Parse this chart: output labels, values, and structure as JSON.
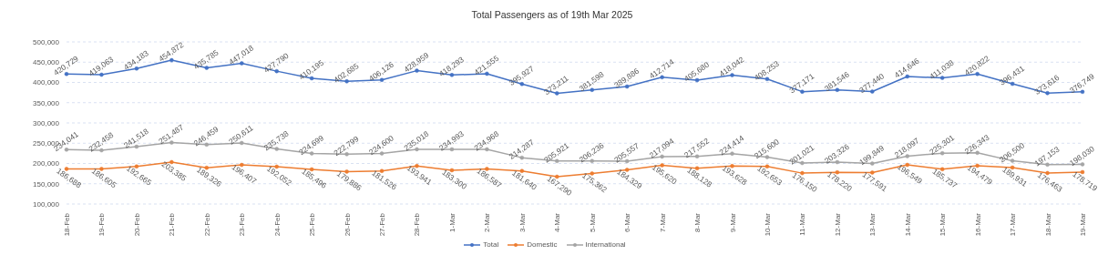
{
  "chart_data": {
    "type": "line",
    "title": "Total Passengers as of 19th Mar 2025",
    "categories": [
      "18-Feb",
      "19-Feb",
      "20-Feb",
      "21-Feb",
      "22-Feb",
      "23-Feb",
      "24-Feb",
      "25-Feb",
      "26-Feb",
      "27-Feb",
      "28-Feb",
      "1-Mar",
      "2-Mar",
      "3-Mar",
      "4-Mar",
      "5-Mar",
      "6-Mar",
      "7-Mar",
      "8-Mar",
      "9-Mar",
      "10-Mar",
      "11-Mar",
      "12-Mar",
      "13-Mar",
      "14-Mar",
      "15-Mar",
      "16-Mar",
      "17-Mar",
      "18-Mar",
      "19-Mar"
    ],
    "series": [
      {
        "name": "Total",
        "color": "#4472c4",
        "values": [
          420729,
          419063,
          434183,
          454872,
          435785,
          447018,
          427790,
          410195,
          402685,
          406126,
          428959,
          418293,
          421555,
          395927,
          373211,
          381598,
          389886,
          412714,
          405680,
          418042,
          408253,
          377171,
          381546,
          377440,
          414646,
          411038,
          420822,
          396431,
          373616,
          376749
        ],
        "value_labels": [
          "420,729",
          "419,063",
          "434,183",
          "454,872",
          "435,785",
          "447,018",
          "427,790",
          "410,195",
          "402,685",
          "406,126",
          "428,959",
          "418,293",
          "421,555",
          "395,927",
          "373,211",
          "381,598",
          "389,886",
          "412,714",
          "405,680",
          "418,042",
          "408,253",
          "377,171",
          "381,546",
          "377,440",
          "414,646",
          "411,038",
          "420,822",
          "396,431",
          "373,616",
          "376,749"
        ]
      },
      {
        "name": "Domestic",
        "color": "#ed7d31",
        "values": [
          186688,
          186605,
          192665,
          203385,
          189326,
          196407,
          192052,
          185496,
          179886,
          181526,
          193941,
          183300,
          186587,
          181640,
          167290,
          175362,
          184329,
          195620,
          188128,
          193628,
          192653,
          176150,
          178220,
          177591,
          196549,
          185737,
          194479,
          189931,
          176463,
          178719
        ],
        "value_labels": [
          "186,688",
          "186,605",
          "192,665",
          "203,385",
          "189,326",
          "196,407",
          "192,052",
          "185,496",
          "179,886",
          "181,526",
          "193,941",
          "183,300",
          "186,587",
          "181,640",
          "167,290",
          "175,362",
          "184,329",
          "195,620",
          "188,128",
          "193,628",
          "192,653",
          "176,150",
          "178,220",
          "177,591",
          "196,549",
          "185,737",
          "194,479",
          "189,931",
          "176,463",
          "178,719"
        ]
      },
      {
        "name": "International",
        "color": "#a5a5a5",
        "values": [
          234041,
          232458,
          241518,
          251487,
          246459,
          250611,
          235738,
          224699,
          222799,
          224600,
          235018,
          234993,
          234968,
          214287,
          205921,
          206236,
          205557,
          217094,
          217552,
          224414,
          215600,
          201021,
          203326,
          199849,
          218097,
          225301,
          226343,
          206500,
          197153,
          198030
        ],
        "value_labels": [
          "234,041",
          "232,458",
          "241,518",
          "251,487",
          "246,459",
          "250,611",
          "235,738",
          "224,699",
          "222,799",
          "224,600",
          "235,018",
          "234,993",
          "234,968",
          "214,287",
          "205,921",
          "206,236",
          "205,557",
          "217,094",
          "217,552",
          "224,414",
          "215,600",
          "201,021",
          "203,326",
          "199,849",
          "218,097",
          "225,301",
          "226,343",
          "206,500",
          "197,153",
          "198,030"
        ]
      }
    ],
    "ylim": [
      100000,
      500000
    ],
    "yticks": [
      {
        "value": 100000,
        "label": "100,000"
      },
      {
        "value": 150000,
        "label": "150,000"
      },
      {
        "value": 200000,
        "label": "200,000"
      },
      {
        "value": 250000,
        "label": "250,000"
      },
      {
        "value": 300000,
        "label": "300,000"
      },
      {
        "value": 350000,
        "label": "350,000"
      },
      {
        "value": 400000,
        "label": "400,000"
      },
      {
        "value": 450000,
        "label": "450,000"
      },
      {
        "value": 500000,
        "label": "500,000"
      }
    ],
    "grid": "y",
    "legend": "bottom",
    "marker": "circle",
    "line_style": "solid"
  }
}
